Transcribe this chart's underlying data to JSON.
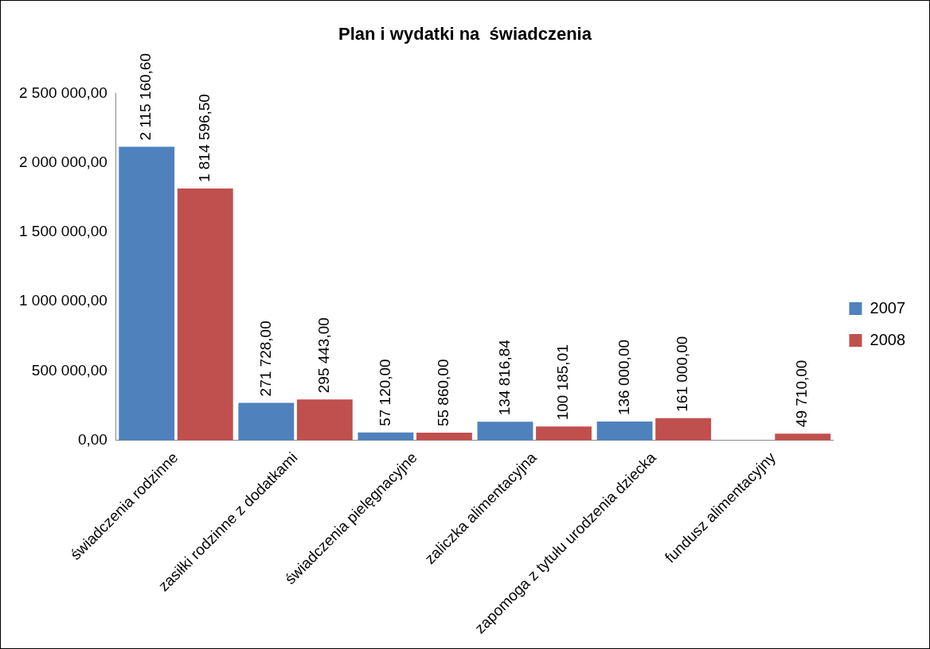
{
  "chart_data": {
    "type": "bar",
    "title": "Plan i wydatki na  świadczenia",
    "categories": [
      "świadczenia rodzinne",
      "zasiłki rodzinne z dodatkami",
      "świadczenia pielęgnacyjne",
      "zaliczka alimentacyjna",
      "zapomoga z tytułu urodzenia dziecka",
      "fundusz alimentacyjny"
    ],
    "series": [
      {
        "name": "2007",
        "color": "#4f81bd",
        "values": [
          2115160.6,
          271728.0,
          57120.0,
          134816.84,
          136000.0,
          null
        ],
        "value_labels": [
          "2 115 160,60",
          "271 728,00",
          "57 120,00",
          "134 816,84",
          "136 000,00",
          null
        ]
      },
      {
        "name": "2008",
        "color": "#c0504d",
        "values": [
          1814596.5,
          295443.0,
          55860.0,
          100185.01,
          161000.0,
          49710.0
        ],
        "value_labels": [
          "1 814 596,50",
          "295 443,00",
          "55 860,00",
          "100 185,01",
          "161 000,00",
          "49 710,00"
        ]
      }
    ],
    "ylim": [
      0,
      2500000
    ],
    "yticks": [
      {
        "value": 0,
        "label": "0,00"
      },
      {
        "value": 500000,
        "label": "500 000,00"
      },
      {
        "value": 1000000,
        "label": "1 000 000,00"
      },
      {
        "value": 1500000,
        "label": "1 500 000,00"
      },
      {
        "value": 2000000,
        "label": "2 000 000,00"
      },
      {
        "value": 2500000,
        "label": "2 500 000,00"
      }
    ],
    "legend": "right"
  }
}
